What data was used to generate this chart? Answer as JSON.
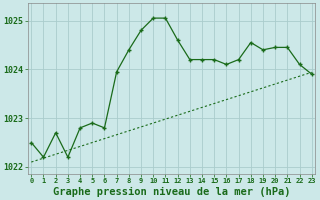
{
  "title": "Graphe pression niveau de la mer (hPa)",
  "background_color": "#cce8e8",
  "grid_color": "#aacccc",
  "line_color": "#1a6b1a",
  "x_hours": [
    0,
    1,
    2,
    3,
    4,
    5,
    6,
    7,
    8,
    9,
    10,
    11,
    12,
    13,
    14,
    15,
    16,
    17,
    18,
    19,
    20,
    21,
    22,
    23
  ],
  "y_main": [
    1022.5,
    1022.2,
    1022.7,
    1022.2,
    1022.8,
    1022.9,
    1022.8,
    1023.95,
    1024.4,
    1024.8,
    1025.05,
    1025.05,
    1024.6,
    1024.2,
    1024.2,
    1024.2,
    1024.1,
    1024.2,
    1024.55,
    1024.4,
    1024.45,
    1024.45,
    1024.1,
    1023.9
  ],
  "y_trend": [
    1022.1,
    1022.18,
    1022.26,
    1022.34,
    1022.42,
    1022.5,
    1022.58,
    1022.66,
    1022.74,
    1022.82,
    1022.9,
    1022.98,
    1023.06,
    1023.14,
    1023.22,
    1023.3,
    1023.38,
    1023.46,
    1023.54,
    1023.62,
    1023.7,
    1023.78,
    1023.86,
    1023.94
  ],
  "ylim": [
    1021.85,
    1025.35
  ],
  "yticks": [
    1022,
    1023,
    1024,
    1025
  ],
  "title_fontsize": 7.5
}
